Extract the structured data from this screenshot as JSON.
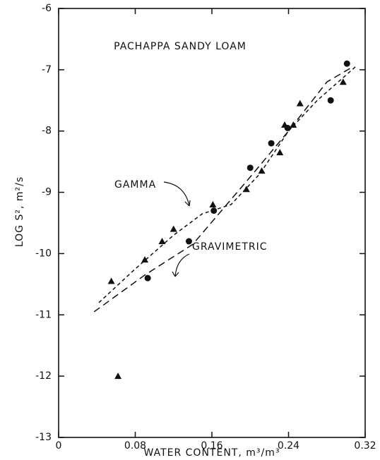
{
  "chart_data": {
    "type": "scatter",
    "title": "PACHAPPA SANDY LOAM",
    "x_label": "WATER CONTENT, m³/m³",
    "y_label": "LOG S², m²/s",
    "xlim": [
      0,
      0.32
    ],
    "xticks": [
      0,
      0.08,
      0.16,
      0.24,
      0.32
    ],
    "ylim": [
      -13,
      -6
    ],
    "yticks": [
      -6,
      -7,
      -8,
      -9,
      -10,
      -11,
      -12,
      -13
    ],
    "color": "#111111",
    "series": [
      {
        "name": "GAMMA",
        "marker": "triangle",
        "x": [
          0.062,
          0.055,
          0.09,
          0.108,
          0.12,
          0.161,
          0.196,
          0.212,
          0.231,
          0.236,
          0.245,
          0.252,
          0.297
        ],
        "values": [
          -12.0,
          -10.45,
          -10.1,
          -9.8,
          -9.6,
          -9.2,
          -8.95,
          -8.65,
          -8.35,
          -7.9,
          -7.9,
          -7.55,
          -7.2
        ],
        "curve_x": [
          0.042,
          0.08,
          0.12,
          0.15,
          0.18,
          0.21,
          0.24,
          0.27,
          0.31
        ],
        "curve_y": [
          -10.8,
          -10.25,
          -9.7,
          -9.35,
          -9.2,
          -8.7,
          -8.0,
          -7.5,
          -6.95
        ]
      },
      {
        "name": "GRAVIMETRIC",
        "marker": "circle",
        "x": [
          0.093,
          0.136,
          0.162,
          0.2,
          0.222,
          0.239,
          0.284,
          0.301
        ],
        "values": [
          -10.4,
          -9.8,
          -9.3,
          -8.6,
          -8.2,
          -7.95,
          -7.5,
          -6.9
        ],
        "curve_x": [
          0.037,
          0.09,
          0.14,
          0.17,
          0.2,
          0.24,
          0.28,
          0.304
        ],
        "curve_y": [
          -10.95,
          -10.35,
          -9.85,
          -9.3,
          -8.75,
          -8.0,
          -7.2,
          -6.98
        ]
      }
    ]
  }
}
